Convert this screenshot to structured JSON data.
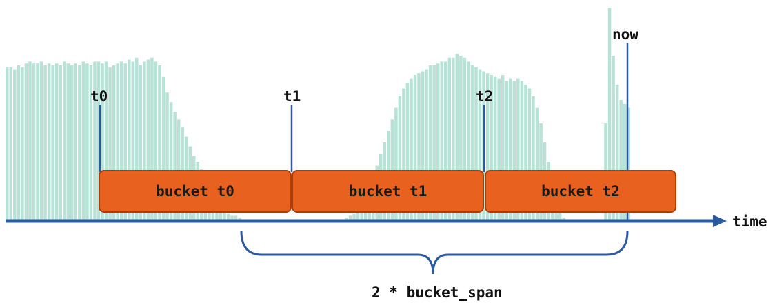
{
  "labels": {
    "t0": "t0",
    "t1": "t1",
    "t2": "t2",
    "now": "now",
    "time": "time",
    "span": "2 * bucket_span"
  },
  "buckets": [
    "bucket t0",
    "bucket t1",
    "bucket t2"
  ],
  "colors": {
    "histogram": "#b9e2d7",
    "axis": "#2c5aa0",
    "marker": "#2c5aa0",
    "bucket_fill": "#e8611e",
    "bucket_border": "#a83e0c",
    "brace": "#2c5aa0"
  },
  "histogram_values": [
    79,
    79,
    78,
    80,
    79,
    81,
    82,
    81,
    81,
    82,
    80,
    81,
    80,
    81,
    80,
    82,
    81,
    80,
    81,
    80,
    82,
    81,
    80,
    82,
    82,
    81,
    82,
    79,
    80,
    81,
    82,
    81,
    83,
    82,
    84,
    80,
    82,
    83,
    84,
    82,
    80,
    74,
    66,
    61,
    56,
    52,
    48,
    43,
    38,
    33,
    30,
    26,
    22,
    18,
    14,
    10,
    7,
    5,
    3,
    2,
    2,
    1,
    0,
    0,
    0,
    0,
    0,
    0,
    0,
    0,
    0,
    0,
    0,
    0,
    0,
    0,
    0,
    0,
    0,
    0,
    0,
    0,
    0,
    0,
    0,
    0,
    0,
    0,
    0,
    1,
    2,
    3,
    5,
    8,
    12,
    17,
    22,
    28,
    34,
    40,
    46,
    52,
    58,
    64,
    68,
    71,
    73,
    75,
    76,
    77,
    78,
    80,
    80,
    81,
    82,
    82,
    84,
    84,
    86,
    85,
    84,
    82,
    80,
    79,
    78,
    77,
    76,
    75,
    74,
    73,
    75,
    72,
    73,
    72,
    73,
    72,
    70,
    68,
    64,
    58,
    50,
    40,
    30,
    20,
    10,
    4,
    1,
    0,
    0,
    0,
    0,
    0,
    0,
    0,
    0,
    0,
    0,
    50,
    110,
    85,
    70,
    62,
    60,
    58
  ]
}
